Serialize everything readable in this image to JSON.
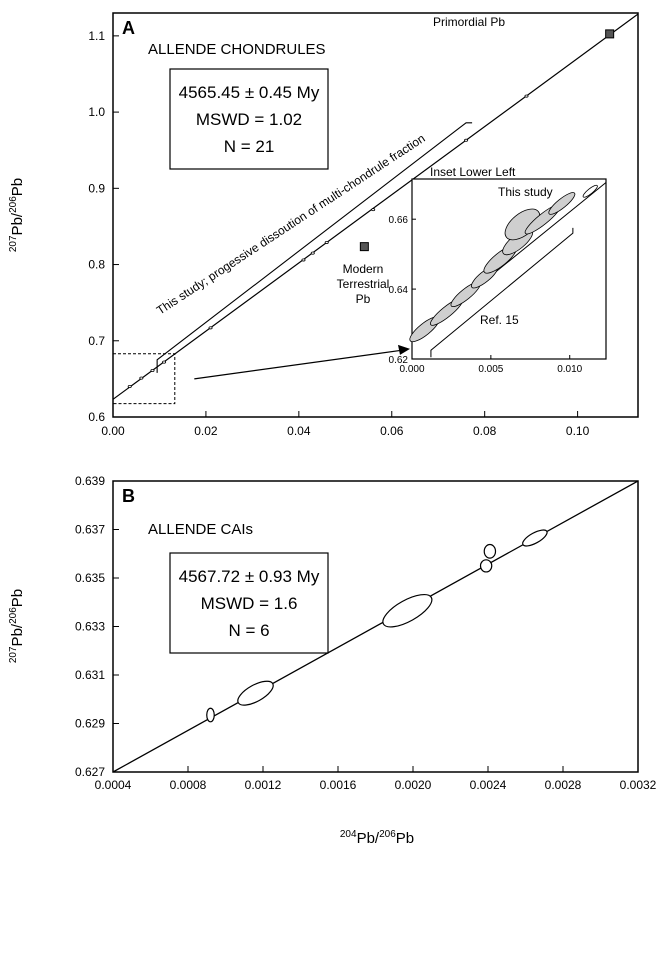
{
  "chart_data": [
    {
      "panel": "A",
      "type": "scatter",
      "subtitle": "ALLENDE CHONDRULES",
      "box": [
        "4565.45 ± 0.45 My",
        "MSWD = 1.02",
        "N = 21"
      ],
      "xlim": [
        0,
        0.113
      ],
      "ylim": [
        0.6,
        1.13
      ],
      "xticks": [
        "0.00",
        "0.02",
        "0.04",
        "0.06",
        "0.08",
        "0.10"
      ],
      "yticks": [
        "0.6",
        "0.7",
        "0.8",
        "0.9",
        "1.0",
        "1.1"
      ],
      "ylabel_pre": "207",
      "ylabel_mid": "Pb/",
      "ylabel_sup2": "206",
      "ylabel_post": "Pb",
      "isochron": {
        "x": [
          0,
          0.113
        ],
        "y": [
          0.6232,
          1.1286
        ]
      },
      "points": [
        {
          "x": 0.0036,
          "y": 0.64
        },
        {
          "x": 0.0061,
          "y": 0.651
        },
        {
          "x": 0.0085,
          "y": 0.661
        },
        {
          "x": 0.011,
          "y": 0.672
        },
        {
          "x": 0.021,
          "y": 0.717
        },
        {
          "x": 0.041,
          "y": 0.806
        },
        {
          "x": 0.043,
          "y": 0.815
        },
        {
          "x": 0.046,
          "y": 0.829
        },
        {
          "x": 0.056,
          "y": 0.872
        },
        {
          "x": 0.076,
          "y": 0.963
        },
        {
          "x": 0.089,
          "y": 1.021
        }
      ],
      "annotations": {
        "primordial": "Primordial Pb",
        "primordial_point": {
          "x": 0.1069,
          "y": 1.1026
        },
        "modern": [
          "Modern",
          "Terrestrial",
          "Pb"
        ],
        "modern_point": {
          "x": 0.0541,
          "y": 0.8235
        },
        "study_label": "This study; progessive dissoution of multi-chondrule fraction"
      },
      "inset": {
        "title": "Inset Lower Left",
        "series_label": "This study",
        "ref_label": "Ref. 15",
        "xlim": [
          0,
          0.0123
        ],
        "ylim": [
          0.62,
          0.6715
        ],
        "xticks": [
          "0.000",
          "0.005",
          "0.010"
        ],
        "yticks": [
          "0.62",
          "0.64",
          "0.66"
        ],
        "line": {
          "x": [
            0,
            0.0123
          ],
          "y": [
            0.6255,
            0.6705
          ]
        },
        "ellipses": [
          {
            "x": 0.0008,
            "y": 0.6285,
            "rx": 0.0009,
            "ry": 0.0012
          },
          {
            "x": 0.0022,
            "y": 0.6335,
            "rx": 0.001,
            "ry": 0.001
          },
          {
            "x": 0.0034,
            "y": 0.6385,
            "rx": 0.0009,
            "ry": 0.001
          },
          {
            "x": 0.0046,
            "y": 0.6435,
            "rx": 0.0008,
            "ry": 0.001
          },
          {
            "x": 0.0056,
            "y": 0.6485,
            "rx": 0.001,
            "ry": 0.0014
          },
          {
            "x": 0.0067,
            "y": 0.6535,
            "rx": 0.0009,
            "ry": 0.0016
          },
          {
            "x": 0.007,
            "y": 0.6585,
            "rx": 0.001,
            "ry": 0.0028
          },
          {
            "x": 0.0083,
            "y": 0.66,
            "rx": 0.0011,
            "ry": 0.001
          },
          {
            "x": 0.0095,
            "y": 0.6645,
            "rx": 0.0008,
            "ry": 0.0008
          }
        ]
      }
    },
    {
      "panel": "B",
      "type": "scatter",
      "subtitle": "ALLENDE CAIs",
      "box": [
        "4567.72 ± 0.93 My",
        "MSWD = 1.6",
        "N = 6"
      ],
      "xlim": [
        0.0004,
        0.0032
      ],
      "ylim": [
        0.627,
        0.639
      ],
      "xticks": [
        "0.0004",
        "0.0008",
        "0.0012",
        "0.0016",
        "0.0020",
        "0.0024",
        "0.0028",
        "0.0032"
      ],
      "yticks": [
        "0.627",
        "0.629",
        "0.631",
        "0.633",
        "0.635",
        "0.637",
        "0.639"
      ],
      "xlabel_sup": "204",
      "xlabel_mid": "Pb/",
      "xlabel_sup2": "206",
      "xlabel_post": "Pb",
      "ylabel_pre": "207",
      "ylabel_mid": "Pb/",
      "ylabel_sup2": "206",
      "ylabel_post": "Pb",
      "isochron": {
        "x": [
          0.0004,
          0.0032
        ],
        "y": [
          0.627,
          0.639
        ]
      },
      "ellipses": [
        {
          "x": 0.00092,
          "y": 0.62935,
          "rx": 2e-05,
          "ry": 0.00028,
          "rot": 0
        },
        {
          "x": 0.00116,
          "y": 0.63025,
          "rx": 0.0001,
          "ry": 0.00045,
          "rot": 0
        },
        {
          "x": 0.00197,
          "y": 0.63365,
          "rx": 0.00014,
          "ry": 0.00058,
          "rot": 0
        },
        {
          "x": 0.00239,
          "y": 0.6355,
          "rx": 3e-05,
          "ry": 0.00025,
          "rot": 0
        },
        {
          "x": 0.00241,
          "y": 0.6361,
          "rx": 3e-05,
          "ry": 0.00028,
          "rot": 0
        },
        {
          "x": 0.00265,
          "y": 0.63665,
          "rx": 7e-05,
          "ry": 0.00028,
          "rot": 0
        }
      ]
    }
  ]
}
